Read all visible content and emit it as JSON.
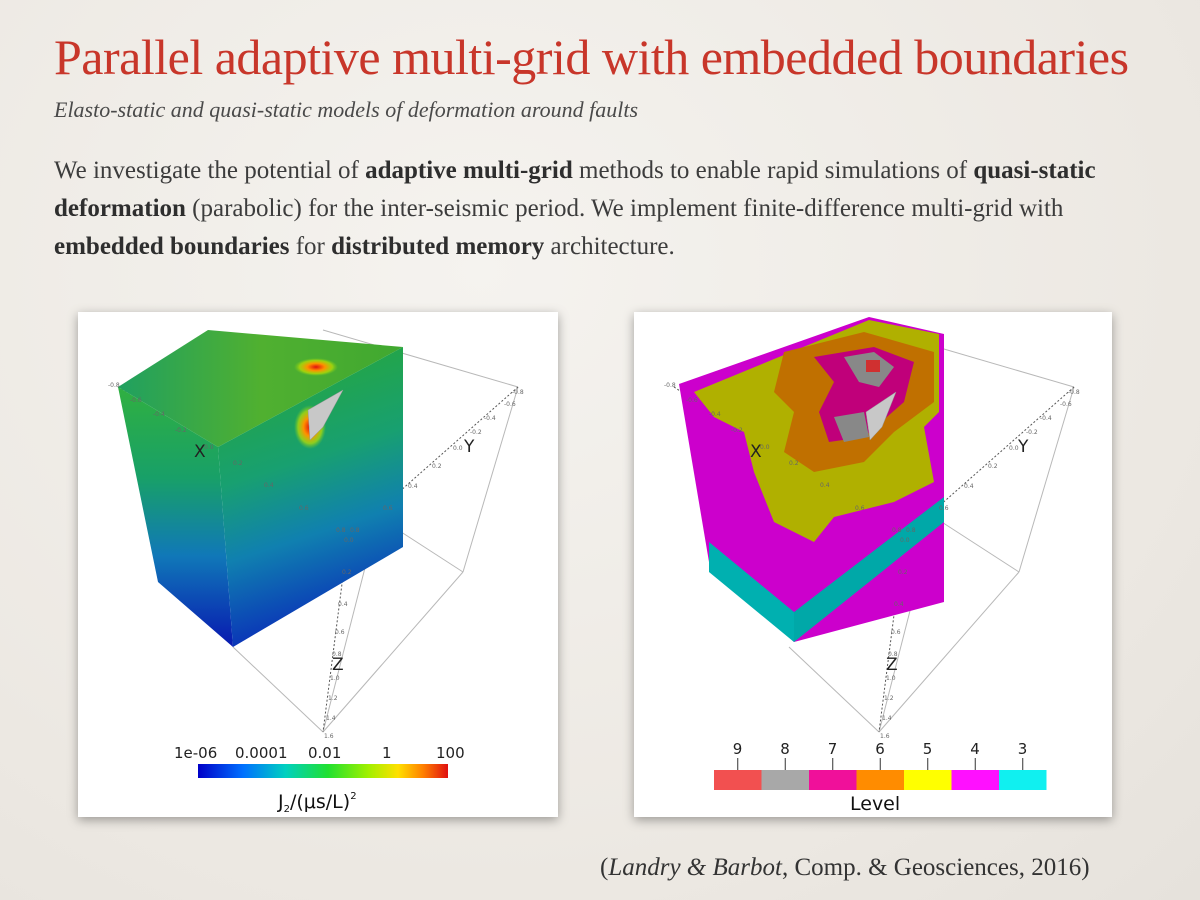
{
  "title": "Parallel adaptive multi-grid with embedded boundaries",
  "subtitle": "Elasto-static and quasi-static models of deformation around faults",
  "body": {
    "p1": "We investigate the potential of ",
    "b1": "adaptive multi-grid",
    "p2": " methods to enable rapid simulations of ",
    "b2": "quasi-static deformation",
    "p3": " (parabolic) for the inter-seismic period. We implement finite-difference multi-grid with ",
    "b3": "embedded boundaries",
    "p4": " for ",
    "b4": "distributed memory",
    "p5": " architecture."
  },
  "left_figure": {
    "axis_x": "X",
    "axis_y": "Y",
    "axis_z": "Z",
    "x_ticks": [
      "-0.8",
      "-0.6",
      "-0.4",
      "-0.2",
      "0.0",
      "0.2",
      "0.4",
      "0.6",
      "0.8"
    ],
    "y_ticks": [
      "-0.8",
      "-0.6",
      "-0.4",
      "-0.2",
      "0.0",
      "0.2",
      "0.4",
      "0.6",
      "0.8"
    ],
    "z_ticks": [
      "0.0",
      "0.2",
      "0.4",
      "0.6",
      "0.8",
      "1.0",
      "1.2",
      "1.4",
      "1.6"
    ],
    "colorbar_ticks": [
      "1e-06",
      "0.0001",
      "0.01",
      "1",
      "100"
    ],
    "colorbar_title": "J",
    "colorbar_title_sub": "2",
    "colorbar_title_rest": "/(μs/L)",
    "colorbar_title_sup": "2",
    "colors": [
      "#0000c8",
      "#0070ff",
      "#00d0c0",
      "#20e030",
      "#a0f000",
      "#ffe000",
      "#ff8000",
      "#e01010"
    ]
  },
  "right_figure": {
    "axis_x": "X",
    "axis_y": "Y",
    "axis_z": "Z",
    "legend_title": "Level",
    "levels": [
      {
        "label": "9",
        "color": "#f25050"
      },
      {
        "label": "8",
        "color": "#a8a8a8"
      },
      {
        "label": "7",
        "color": "#f0109a"
      },
      {
        "label": "6",
        "color": "#ff8c00"
      },
      {
        "label": "5",
        "color": "#ffff00"
      },
      {
        "label": "4",
        "color": "#ff10ff"
      },
      {
        "label": "3",
        "color": "#10f0f0"
      }
    ]
  },
  "citation": {
    "open": "(",
    "authors": "Landry & Barbot",
    "rest": ", Comp. & Geosciences, 2016)"
  }
}
